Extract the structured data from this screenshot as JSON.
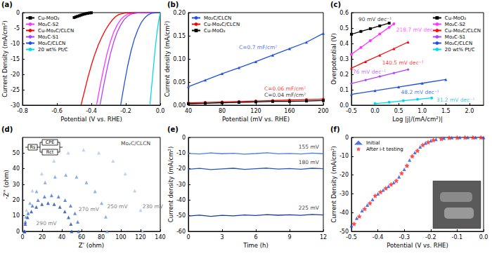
{
  "chart_data": [
    {
      "title": "(a)",
      "type": "line",
      "x_label": "Potential (V vs. RHE)",
      "y_label": "Current Density (mA/cm²)",
      "xlim": [
        -0.8,
        0
      ],
      "xticks": [
        -0.8,
        -0.6,
        -0.4,
        -0.2,
        {
          "value": 0,
          "label": "0.0"
        }
      ],
      "ylim": [
        -30,
        0
      ],
      "yticks": [
        -30,
        -25,
        -20,
        -15,
        -10,
        -5,
        0
      ],
      "grid": false,
      "legend": "upper left",
      "series": [
        {
          "name": "Cu-MoO₂",
          "color": "#000000",
          "marker": "square",
          "x": [
            -0.5,
            -0.49,
            -0.48,
            -0.47,
            -0.46,
            -0.45,
            -0.44,
            -0.43,
            -0.42,
            -0.41,
            -0.4
          ],
          "y": [
            -1.6,
            -1.4,
            -1.2,
            -1.0,
            -0.8,
            -0.6,
            -0.45,
            -0.3,
            -0.2,
            -0.1,
            -0.05
          ]
        },
        {
          "name": "Mo₂C-S2",
          "color": "#ff33ff",
          "x": [
            -0.37,
            -0.35,
            -0.33,
            -0.31,
            -0.29,
            -0.27,
            -0.25,
            -0.23,
            -0.21,
            -0.19,
            -0.15,
            -0.1,
            0
          ],
          "y": [
            -30,
            -24,
            -18.5,
            -13.5,
            -9.5,
            -6.3,
            -4,
            -2.3,
            -1.2,
            -0.5,
            -0.1,
            0,
            0
          ]
        },
        {
          "name": "Cu-Mo₂C/CLCN",
          "color": "#ff0000",
          "x": [
            -0.46,
            -0.44,
            -0.42,
            -0.4,
            -0.38,
            -0.36,
            -0.34,
            -0.32,
            -0.3,
            -0.28,
            -0.26,
            -0.24,
            -0.2,
            -0.1,
            0
          ],
          "y": [
            -30,
            -25.5,
            -21,
            -17,
            -13.5,
            -10.5,
            -8,
            -5.8,
            -4,
            -2.5,
            -1.3,
            -0.6,
            -0.1,
            0,
            0
          ]
        },
        {
          "name": "Mo₂C-S1",
          "color": "#b040ff",
          "x": [
            -0.35,
            -0.33,
            -0.31,
            -0.29,
            -0.27,
            -0.25,
            -0.23,
            -0.21,
            -0.19,
            -0.17,
            -0.13,
            -0.08,
            0
          ],
          "y": [
            -30,
            -24,
            -18.5,
            -13.5,
            -9.5,
            -6.3,
            -4,
            -2.3,
            -1.2,
            -0.5,
            -0.1,
            0,
            0
          ]
        },
        {
          "name": "Mo₂C/CLCN",
          "color": "#2050e0",
          "x": [
            -0.23,
            -0.21,
            -0.19,
            -0.17,
            -0.15,
            -0.13,
            -0.11,
            -0.09,
            -0.07,
            -0.05,
            -0.02,
            0
          ],
          "y": [
            -30,
            -23.5,
            -17.5,
            -12.5,
            -8.5,
            -5.5,
            -3.2,
            -1.7,
            -0.7,
            -0.2,
            0,
            0
          ]
        },
        {
          "name": "20 wt% Pt/C",
          "color": "#00d8f0",
          "x": [
            -0.06,
            -0.05,
            -0.04,
            -0.03,
            -0.02,
            -0.01,
            0
          ],
          "y": [
            -30,
            -24,
            -18,
            -12,
            -7,
            -3,
            0
          ]
        }
      ]
    },
    {
      "title": "(b)",
      "type": "line",
      "x_label": "Potential (mV vs. RHE)",
      "y_label": "Current density (mA/cm²)",
      "xlim": [
        40,
        200
      ],
      "xticks": [
        40,
        80,
        120,
        160,
        200
      ],
      "ylim": [
        0,
        0.2
      ],
      "yticks": [
        {
          "value": 0,
          "label": "0.00"
        },
        0.05,
        {
          "value": 0.1,
          "label": "0.10"
        },
        0.15,
        {
          "value": 0.2,
          "label": "0.20"
        }
      ],
      "grid": false,
      "legend": "upper left",
      "series": [
        {
          "name": "Mo₂C/CLCN",
          "color": "#2050e0",
          "marker": "triangle",
          "x": [
            40,
            60,
            80,
            100,
            120,
            140,
            160,
            180,
            200
          ],
          "y": [
            0.04,
            0.054,
            0.068,
            0.081,
            0.094,
            0.108,
            0.122,
            0.136,
            0.155
          ]
        },
        {
          "name": "Cu-Mo₂C/CLCN",
          "color": "#ff0000",
          "marker": "circle",
          "x": [
            40,
            60,
            80,
            100,
            120,
            140,
            160,
            180,
            200
          ],
          "y": [
            0.005,
            0.006,
            0.007,
            0.008,
            0.009,
            0.01,
            0.011,
            0.012,
            0.013
          ]
        },
        {
          "name": "Cu-MoO₂",
          "color": "#000000",
          "marker": "square",
          "x": [
            40,
            60,
            80,
            100,
            120,
            140,
            160,
            180,
            200
          ],
          "y": [
            0.003,
            0.004,
            0.005,
            0.006,
            0.007,
            0.008,
            0.008,
            0.009,
            0.01
          ]
        }
      ],
      "annotations": [
        {
          "text": "C=0.7 mF/cm²",
          "x": 100,
          "y": 0.125,
          "color": "#2050e0"
        },
        {
          "text": "C=0.06 mF/cm²",
          "x": 130,
          "y": 0.035,
          "color": "#ff0000"
        },
        {
          "text": "C=0.04 mF/cm²",
          "x": 130,
          "y": 0.022,
          "color": "#000000"
        }
      ]
    },
    {
      "title": "(c)",
      "type": "line",
      "x_label": "Log |j|/(mA/cm²)|",
      "y_label": "Overpotential (V)",
      "xlim": [
        -0.5,
        2.3
      ],
      "xticks": [
        -0.5,
        {
          "value": 0,
          "label": "0.0"
        },
        0.5,
        {
          "value": 1,
          "label": "1.0"
        },
        1.5,
        {
          "value": 2,
          "label": "2.0"
        }
      ],
      "ylim": [
        0,
        0.6
      ],
      "yticks": [
        {
          "value": 0,
          "label": "0.0"
        },
        0.1,
        0.2,
        0.3,
        0.4,
        0.5,
        0.6
      ],
      "grid": false,
      "legend": "upper right",
      "series": [
        {
          "name": "Cu-MoO₂",
          "color": "#000000",
          "marker": "square",
          "x": [
            -0.5,
            -0.3,
            -0.1,
            0.1,
            0.3
          ],
          "y": [
            0.46,
            0.478,
            0.496,
            0.514,
            0.532
          ]
        },
        {
          "name": "Mo₂C-S2",
          "color": "#ff33ff",
          "marker": "circle",
          "x": [
            -0.5,
            -0.3,
            -0.1,
            0.1,
            0.3,
            0.4
          ],
          "y": [
            0.33,
            0.374,
            0.418,
            0.461,
            0.505,
            0.527
          ]
        },
        {
          "name": "Cu-Mo₂C/CLCN",
          "color": "#ff0000",
          "marker": "triangle",
          "x": [
            -0.5,
            -0.2,
            0.1,
            0.4,
            0.7
          ],
          "y": [
            0.24,
            0.282,
            0.324,
            0.366,
            0.409
          ]
        },
        {
          "name": "Mo₂C-S1",
          "color": "#b040ff",
          "marker": "diamond",
          "x": [
            -0.5,
            -0.2,
            0.1,
            0.4,
            0.7
          ],
          "y": [
            0.14,
            0.163,
            0.186,
            0.208,
            0.231
          ]
        },
        {
          "name": "Mo₂C/CLCN",
          "color": "#2050e0",
          "marker": "triangle",
          "x": [
            -0.5,
            0,
            0.5,
            1.0,
            1.5
          ],
          "y": [
            0.07,
            0.094,
            0.118,
            0.142,
            0.166
          ]
        },
        {
          "name": "20 wt% Pt/C",
          "color": "#00d8f0",
          "marker": "circle",
          "x": [
            0,
            0.3,
            0.6,
            0.9,
            1.2
          ],
          "y": [
            0.01,
            0.019,
            0.029,
            0.038,
            0.047
          ]
        }
      ],
      "annotations": [
        {
          "text": "90 mV dec⁻¹",
          "x": -0.35,
          "y": 0.555,
          "color": "#000000"
        },
        {
          "text": "218.7 mV dec⁻¹",
          "x": 0.45,
          "y": 0.49,
          "color": "#ff33ff"
        },
        {
          "text": "140.5 mV dec⁻¹",
          "x": 0.15,
          "y": 0.275,
          "color": "#ff0000"
        },
        {
          "text": "76 mV dec⁻¹",
          "x": -0.47,
          "y": 0.215,
          "color": "#b040ff"
        },
        {
          "text": "48.2 mV dec⁻¹",
          "x": 0.55,
          "y": 0.085,
          "color": "#2050e0"
        },
        {
          "text": "31.2 mV dec⁻¹",
          "x": 1.3,
          "y": 0.035,
          "color": "#00b8d0"
        }
      ]
    },
    {
      "title": "(d)",
      "type": "scatter",
      "x_label": "Z' (ohm)",
      "y_label": "-Z'' (ohm)",
      "xlim": [
        0,
        140
      ],
      "xticks": [
        0,
        20,
        40,
        60,
        80,
        100,
        120,
        140
      ],
      "ylim": [
        0,
        60
      ],
      "yticks": [
        0,
        10,
        20,
        30,
        40,
        50
      ],
      "grid": false,
      "circuit": [
        "Rs",
        "CPE",
        "Rct"
      ],
      "series": [
        {
          "color": "#a8c8f0",
          "marker": "triangle",
          "x": [
            2,
            4.0,
            10.0,
            19.6,
            32,
            46.5,
            62,
            77.5,
            92,
            104.4,
            114,
            120,
            122
          ],
          "y": [
            0,
            13.5,
            26,
            36.8,
            45,
            50.2,
            52,
            50.2,
            45,
            36.8,
            26,
            13.5,
            0
          ]
        },
        {
          "color": "#6fa0e0",
          "marker": "triangle",
          "x": [
            2,
            3.4,
            7.6,
            14.3,
            23,
            33.1,
            44,
            54.9,
            65,
            73.7,
            80.4,
            84.6,
            86
          ],
          "y": [
            0,
            9.3,
            18,
            25.5,
            31.2,
            34.8,
            36,
            34.8,
            31.2,
            25.5,
            18,
            9.3,
            0
          ]
        },
        {
          "color": "#3f6fd0",
          "marker": "triangle",
          "x": [
            2,
            2.9,
            5.7,
            10.1,
            15.8,
            22.4,
            29.5,
            36.6,
            43.3,
            48.9,
            53.3,
            56.1,
            57
          ],
          "y": [
            0,
            6,
            11.5,
            16.3,
            19.9,
            22.2,
            23,
            22.2,
            19.9,
            16.3,
            11.5,
            6,
            0
          ]
        },
        {
          "color": "#1a4ab0",
          "marker": "triangle",
          "x": [
            2,
            2.8,
            5.2,
            9,
            14,
            19.8,
            26,
            32.2,
            38,
            43,
            46.8,
            49.2,
            50
          ],
          "y": [
            0,
            4.7,
            9,
            12.7,
            15.6,
            17.4,
            18,
            17.4,
            15.6,
            12.7,
            9,
            4.7,
            0
          ]
        }
      ],
      "annotations": [
        {
          "text": "Mo₂C/CLCN",
          "x": 100,
          "y": 56,
          "color": "#000000"
        },
        {
          "text": "230 mV",
          "x": 122,
          "y": 16,
          "color": "#555555"
        },
        {
          "text": "250 mV",
          "x": 86,
          "y": 16,
          "color": "#555555"
        },
        {
          "text": "270 mV",
          "x": 57,
          "y": 14,
          "color": "#555555"
        },
        {
          "text": "290 mV",
          "x": 14,
          "y": 5,
          "color": "#555555"
        }
      ]
    },
    {
      "title": "(e)",
      "type": "line",
      "x_label": "Time (h)",
      "y_label": "Current density (mA/cm²)",
      "xlim": [
        0,
        12
      ],
      "xticks": [
        0,
        3,
        6,
        9,
        12
      ],
      "ylim": [
        -60,
        0
      ],
      "yticks": [
        -60,
        -50,
        -40,
        -30,
        -20,
        -10,
        0
      ],
      "grid": false,
      "series": [
        {
          "color": "#4a7fe0",
          "x": [
            0,
            1,
            2,
            3,
            4,
            5,
            6,
            7,
            8,
            9,
            10,
            11,
            12
          ],
          "y": [
            -10.2,
            -10.6,
            -9.9,
            -10.4,
            -10.1,
            -10.7,
            -10.3,
            -9.8,
            -10.5,
            -10.2,
            -10.6,
            -10.0,
            -10.4
          ]
        },
        {
          "color": "#2855c8",
          "x": [
            0,
            1,
            2,
            3,
            4,
            5,
            6,
            7,
            8,
            9,
            10,
            11,
            12
          ],
          "y": [
            -20.3,
            -19.8,
            -20.5,
            -20.1,
            -19.7,
            -20.4,
            -20.0,
            -19.6,
            -20.2,
            -19.9,
            -20.3,
            -19.7,
            -20.0
          ]
        },
        {
          "color": "#1a3a9e",
          "x": [
            0,
            1,
            2,
            3,
            4,
            5,
            6,
            7,
            8,
            9,
            10,
            11,
            12
          ],
          "y": [
            -50.2,
            -49.6,
            -50.4,
            -49.8,
            -50.1,
            -49.5,
            -49.9,
            -49.3,
            -49.7,
            -49.4,
            -49.8,
            -49.2,
            -49.5
          ]
        }
      ],
      "annotations": [
        {
          "text": "155 mV",
          "x": 9.8,
          "y": -6,
          "color": "#000000"
        },
        {
          "text": "180 mV",
          "x": 9.8,
          "y": -16,
          "color": "#000000"
        },
        {
          "text": "225 mV",
          "x": 9.8,
          "y": -45,
          "color": "#000000"
        }
      ]
    },
    {
      "title": "(f)",
      "type": "scatter",
      "x_label": "Potential (V vs. RHE)",
      "y_label": "Current Density (mA/cm²)",
      "xlim": [
        -0.5,
        0
      ],
      "xticks": [
        -0.5,
        -0.4,
        -0.3,
        -0.2,
        -0.1,
        {
          "value": 0,
          "label": "0.0"
        }
      ],
      "ylim": [
        -50,
        0
      ],
      "yticks": [
        -50,
        -40,
        -30,
        -20,
        -10,
        0
      ],
      "grid": false,
      "legend": "upper left",
      "series": [
        {
          "name": "Initial",
          "color": "#2050e0",
          "marker": "triangle",
          "x": [
            -0.5,
            -0.48,
            -0.46,
            -0.44,
            -0.42,
            -0.4,
            -0.38,
            -0.36,
            -0.34,
            -0.32,
            -0.3,
            -0.28,
            -0.26,
            -0.24,
            -0.22,
            -0.2,
            -0.18,
            -0.15,
            -0.12,
            -0.09,
            -0.06,
            -0.03,
            0
          ],
          "y": [
            -47,
            -43,
            -39,
            -36,
            -33,
            -30,
            -28,
            -26,
            -24,
            -21,
            -17,
            -12,
            -8,
            -5,
            -3,
            -1.8,
            -1,
            -0.4,
            -0.1,
            0,
            0,
            0,
            0
          ]
        },
        {
          "name": "After i-t testing",
          "color": "#ff2020",
          "marker": "star",
          "x": [
            -0.49,
            -0.47,
            -0.45,
            -0.43,
            -0.41,
            -0.39,
            -0.37,
            -0.35,
            -0.33,
            -0.31,
            -0.29,
            -0.27,
            -0.25,
            -0.23,
            -0.21,
            -0.19,
            -0.16,
            -0.13,
            -0.1,
            -0.07,
            -0.04,
            -0.01
          ],
          "y": [
            -46,
            -42,
            -38,
            -35,
            -31,
            -29,
            -27,
            -25,
            -23,
            -19,
            -15,
            -10,
            -7,
            -4,
            -2.5,
            -1.4,
            -0.7,
            -0.2,
            -0.05,
            0,
            0,
            0
          ]
        }
      ]
    }
  ]
}
